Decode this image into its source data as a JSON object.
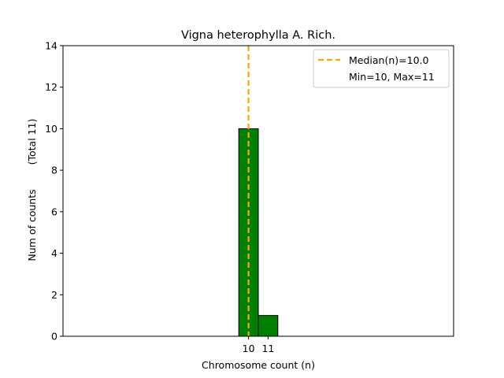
{
  "chart_data": {
    "type": "bar",
    "title": "Vigna heterophylla A. Rich.",
    "xlabel": "Chromosome count (n)",
    "ylabel": "Num of counts",
    "ylabel_total": "(Total 11)",
    "categories": [
      10,
      11
    ],
    "values": [
      10,
      1
    ],
    "bar_color": "#008000",
    "bar_edge_color": "#000000",
    "median": 10.0,
    "median_color": "#FFA500",
    "xticks": [
      "10",
      "11"
    ],
    "yticks": [
      0,
      2,
      4,
      6,
      8,
      10,
      12,
      14
    ],
    "ylim": [
      0,
      14
    ],
    "xlim": [
      0.5,
      20.5
    ],
    "grid": false,
    "legend_position": "top-right",
    "legend": {
      "median_label": "Median(n)=10.0",
      "minmax_label": "Min=10, Max=11"
    }
  }
}
